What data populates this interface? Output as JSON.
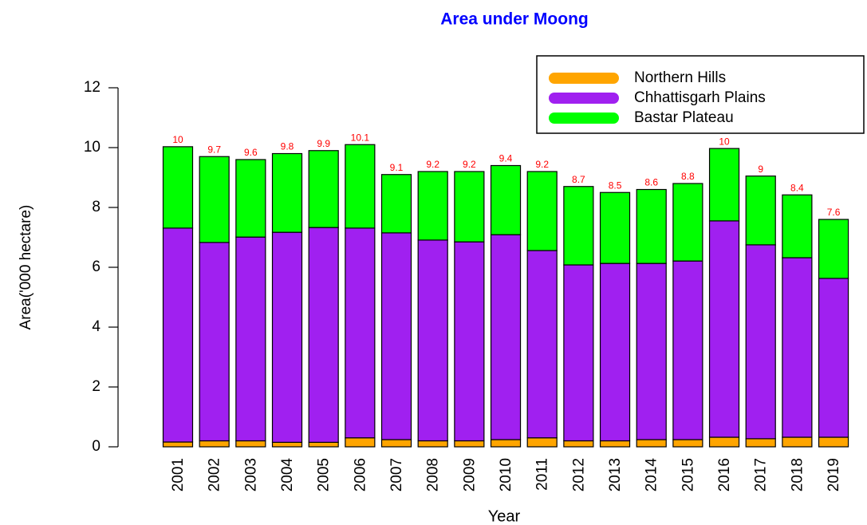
{
  "chart_data": {
    "type": "stacked_bar",
    "title": "Area under Moong",
    "x_label": "Year",
    "y_label": "Area('000 hectare)",
    "categories": [
      "2001",
      "2002",
      "2003",
      "2004",
      "2005",
      "2006",
      "2007",
      "2008",
      "2009",
      "2010",
      "2011",
      "2012",
      "2013",
      "2014",
      "2015",
      "2016",
      "2017",
      "2018",
      "2019"
    ],
    "series": [
      {
        "name": "Northern Hills",
        "color": "#FFA500",
        "values": [
          0.16,
          0.2,
          0.2,
          0.15,
          0.15,
          0.3,
          0.24,
          0.2,
          0.2,
          0.24,
          0.3,
          0.2,
          0.2,
          0.24,
          0.24,
          0.32,
          0.27,
          0.32,
          0.32
        ]
      },
      {
        "name": "Chhattisgarh Plains",
        "color": "#A020F0",
        "values": [
          7.15,
          6.63,
          6.81,
          7.02,
          7.18,
          7.01,
          6.91,
          6.71,
          6.65,
          6.85,
          6.26,
          5.88,
          5.93,
          5.89,
          5.97,
          7.23,
          6.48,
          6.0,
          5.31
        ]
      },
      {
        "name": "Bastar Plateau",
        "color": "#00FF00",
        "values": [
          2.72,
          2.87,
          2.59,
          2.63,
          2.57,
          2.79,
          1.95,
          2.29,
          2.35,
          2.31,
          2.64,
          2.62,
          2.37,
          2.47,
          2.59,
          2.42,
          2.3,
          2.1,
          1.97
        ]
      }
    ],
    "total_labels": [
      10,
      9.7,
      9.6,
      9.8,
      9.9,
      10.1,
      9.1,
      9.2,
      9.2,
      9.4,
      9.2,
      8.7,
      8.5,
      8.6,
      8.8,
      10,
      9,
      8.4,
      7.6
    ],
    "ylim": [
      0,
      12
    ],
    "yticks": [
      0,
      2,
      4,
      6,
      8,
      10,
      12
    ],
    "legend": "top-right"
  }
}
